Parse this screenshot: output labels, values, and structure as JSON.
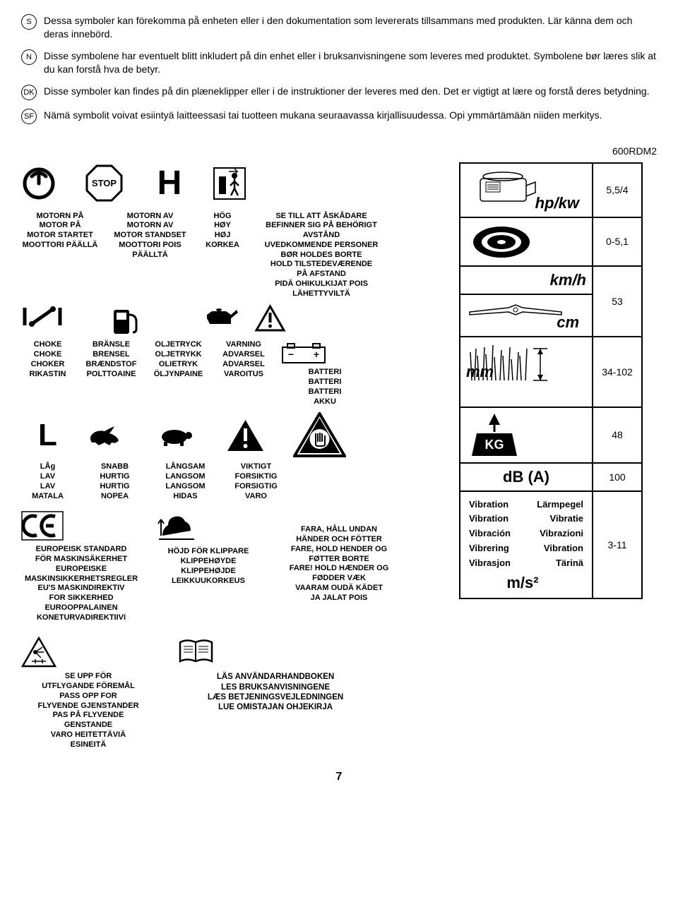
{
  "intro": [
    {
      "code": "S",
      "text": "Dessa symboler kan förekomma på enheten eller i den dokumentation som levererats tillsammans med produkten. Lär känna dem och deras innebörd."
    },
    {
      "code": "N",
      "text": "Disse symbolene har eventuelt blitt inkludert på din enhet eller i bruksanvisningene som leveres med produktet. Symbolene bør læres slik at du kan forstå hva de betyr."
    },
    {
      "code": "DK",
      "text": "Disse symboler kan findes på din plæneklipper eller i de instruktioner der leveres med den. Det er vigtigt at lære og forstå deres betydning."
    },
    {
      "code": "SF",
      "text": "Nämä symbolit voivat esiintyä laitteessasi tai tuotteen mukana seuraavassa kirjallisuudessa. Opi ymmärtämään niiden merkitys."
    }
  ],
  "model": "600RDM2",
  "symbols": {
    "motor_on": "MOTORN PÅ\nMOTOR PÅ\nMOTOR STARTET\nMOOTTORI PÄÄLLÄ",
    "motor_off": "MOTORN AV\nMOTORN AV\nMOTOR STANDSET\nMOOTTORI POIS\nPÄÄLLTÄ",
    "stop": "STOP",
    "high": "HÖG\nHØY\nHØJ\nKORKEA",
    "bystanders": "SE TILL ATT ÅSKÅDARE\nBEFINNER SIG PÅ BEHÖRIGT\nAVSTÅND\nUVEDKOMMENDE PERSONER\nBØR HOLDES BORTE\nHOLD TILSTEDEVÆRENDE\nPÅ AFSTAND\nPIDÄ OHIKULKIJAT POIS\nLÄHETTYVILTÄ",
    "choke": "CHOKE\nCHOKE\nCHOKER\nRIKASTIN",
    "fuel": "BRÄNSLE\nBRENSEL\nBRÆNDSTOF\nPOLTTOAINE",
    "oil": "OLJETRYCK\nOLJETRYKK\nOLIETRYK\nÖLJYNPAINE",
    "warning": "VARNING\nADVARSEL\nADVARSEL\nVAROITUS",
    "battery": "BATTERI\nBATTERI\nBATTERI\nAKKU",
    "low": "LÅg\nLAV\nLAV\nMATALA",
    "fast": "SNABB\nHURTIG\nHURTIG\nNOPEA",
    "slow": "LÅNGSAM\nLANGSOM\nLANGSOM\nHIDAS",
    "important": "VIKTIGT\nFORSIKTIG\nFORSIGTIG\nVARO",
    "eu_std": "EUROPEISK STANDARD\nFÖR MASKINSÄKERHET\nEUROPEISKE\nMASKINSIKKERHETSREGLER\nEU'S MASKINDIREKTIV\nFOR SIKKERHED\nEUROOPPALAINEN\nKONETURVADIREKTIIVI",
    "cut_height": "HÖJD FÖR KLIPPARE\nKLIPPEHØYDE\nKLIPPEHØJDE\nLEIKKUUKORKEUS",
    "danger_hf": "FARA, HÅLL UNDAN\nHÄNDER OCH FÖTTER\nFARE, HOLD HENDER OG\nFØTTER BORTE\nFARE! HOLD HÆNDER OG\nFØDDER VÆK\nVAARAM OUDÄ KÄDET\nJA JALAT POIS",
    "flying": "SE UPP FÖR\nUTFLYGANDE FÖREMÅL\nPASS OPP FOR\nFLYVENDE GJENSTANDER\nPAS PÅ FLYVENDE\nGENSTANDE\nVARO HEITETTÄVIÄ\nESINEITÄ",
    "manual": "LÄS ANVÄNDARHANDBOKEN\nLES BRUKSANVISNINGENE\nLÆS BETJENINGSVEJLEDNINGEN\nLUE OMISTAJAN OHJEKIRJA"
  },
  "specs": {
    "hpkw_unit": "hp/kw",
    "hpkw_val": "5,5/4",
    "range_val": "0-5,1",
    "kmh_unit": "km/h",
    "cm_unit": "cm",
    "cm_val": "53",
    "mm_unit": "mm",
    "mm_val": "34-102",
    "kg_label": "KG",
    "kg_val": "48",
    "db_unit": "dB (A)",
    "db_val": "100",
    "ms2_unit": "m/s²",
    "ms2_val": "3-11",
    "vib_rows": [
      [
        "Vibration",
        "Lärmpegel"
      ],
      [
        "Vibration",
        "Vibratie"
      ],
      [
        "Vibración",
        "Vibrazioni"
      ],
      [
        "Vibrering",
        "Vibration"
      ],
      [
        "Vibrasjon",
        "Tärinä"
      ]
    ]
  },
  "page": "7",
  "colors": {
    "black": "#000000",
    "white": "#ffffff"
  }
}
